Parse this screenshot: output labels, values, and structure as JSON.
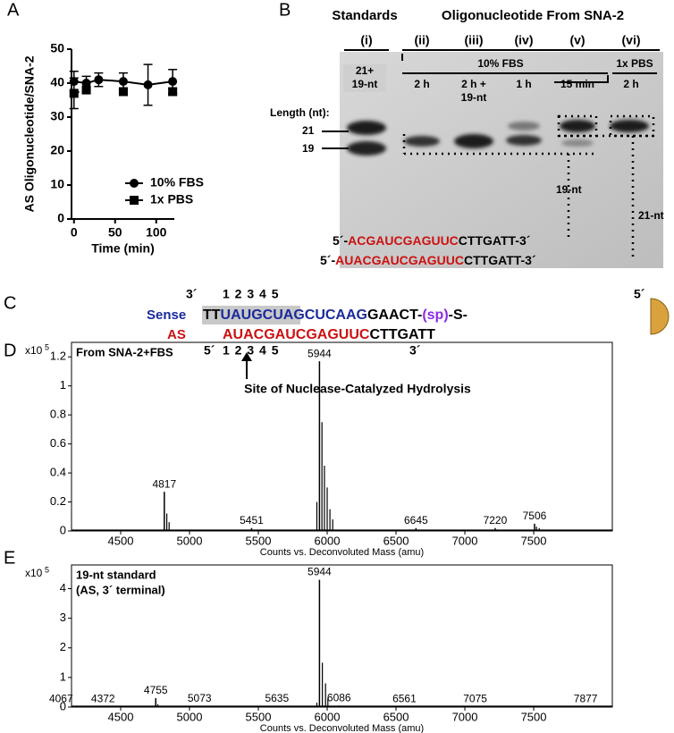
{
  "panel_letters": [
    "A",
    "B",
    "C",
    "D",
    "E"
  ],
  "chart_data": [
    {
      "type": "line",
      "y_label": "AS Oligonucleotide/SNA-2",
      "x_label": "Time (min)",
      "x": [
        0,
        15,
        30,
        60,
        90,
        120
      ],
      "series": [
        {
          "name": "10% FBS",
          "color": "#000000",
          "marker": "circle",
          "dash": false,
          "values": [
            40.5,
            40,
            41,
            40.5,
            39.5,
            40.5
          ],
          "errors": [
            3,
            2,
            2,
            2.5,
            6,
            3.5
          ]
        },
        {
          "name": "1x PBS",
          "color": "#000000",
          "marker": "square",
          "dash": true,
          "values": [
            37,
            38,
            null,
            37.5,
            null,
            37.5
          ],
          "errors": [
            4.5,
            1,
            null,
            1,
            null,
            1
          ]
        }
      ],
      "xlim": [
        -3,
        122
      ],
      "xticks": [
        0,
        50,
        100
      ],
      "ylim": [
        0,
        50
      ],
      "yticks": [
        0,
        10,
        20,
        30,
        40,
        50
      ]
    },
    {
      "type": "spectrum",
      "title": [
        "From SNA-2+FBS"
      ],
      "scale_label": "x10",
      "scale_exponent": "5",
      "x_label": "Counts vs. Deconvoluted Mass (amu)",
      "x": [
        4817,
        5451,
        5944,
        6645,
        7220,
        7506
      ],
      "values": [
        0.27,
        0.02,
        1.17,
        0.02,
        0.02,
        0.05
      ],
      "minor_x": [
        4835,
        4852,
        5925,
        5962,
        5980,
        6000,
        6020,
        6040,
        6600,
        7520,
        7540
      ],
      "minor_values": [
        0.12,
        0.06,
        0.2,
        0.75,
        0.45,
        0.3,
        0.15,
        0.08,
        0.01,
        0.03,
        0.02
      ],
      "color": "#000000",
      "xlim": [
        4143,
        8071
      ],
      "xticks": [
        4500,
        5000,
        5500,
        6000,
        6500,
        7000,
        7500
      ],
      "ylim": [
        0,
        1.3
      ],
      "yticks": [
        0,
        0.2,
        0.4,
        0.6,
        0.8,
        1,
        1.2
      ]
    },
    {
      "type": "spectrum",
      "title": [
        "19-nt standard",
        "(AS, 3´ terminal)"
      ],
      "scale_label": "x10",
      "scale_exponent": "5",
      "x_label": "Counts vs. Deconvoluted Mass (amu)",
      "x": [
        4067,
        4372,
        4755,
        5073,
        5635,
        5944,
        6086,
        6561,
        7075,
        7877
      ],
      "values": [
        0.02,
        0.02,
        0.3,
        0.03,
        0.03,
        4.3,
        0.05,
        0.02,
        0.02,
        0.02
      ],
      "minor_x": [
        5925,
        5965,
        5988,
        6005,
        4770
      ],
      "minor_values": [
        0.15,
        1.5,
        0.8,
        0.3,
        0.1
      ],
      "color": "#000000",
      "xlim": [
        4143,
        8071
      ],
      "xticks": [
        4500,
        5000,
        5500,
        6000,
        6500,
        7000,
        7500
      ],
      "ylim": [
        0,
        4.8
      ],
      "yticks": [
        0,
        1,
        2,
        3,
        4
      ]
    }
  ],
  "gel": {
    "header_left": "Standards",
    "header_right": "Oligonucleotide From SNA-2",
    "lanes": [
      "(i)",
      "(ii)",
      "(iii)",
      "(iv)",
      "(v)",
      "(vi)"
    ],
    "group_fbs": "10% FBS",
    "group_pbs": "1x PBS",
    "conditions": [
      [
        "21+",
        "19-nt"
      ],
      [
        "2 h"
      ],
      [
        "2 h +",
        "19-nt"
      ],
      [
        "1 h"
      ],
      [
        "15 min"
      ],
      [
        "2 h"
      ]
    ],
    "length_label": "Length (nt):",
    "marker_21": "21",
    "marker_19": "19",
    "band_19": "19-nt",
    "band_21": "21-nt",
    "sequences": [
      [
        {
          "text": "5´-",
          "color": "#000000"
        },
        {
          "text": "ACGAUCGAGUUC",
          "color": "#cc1111"
        },
        {
          "text": "CTTGATT-3´",
          "color": "#000000"
        }
      ],
      [
        {
          "text": "5´-",
          "color": "#000000"
        },
        {
          "text": "AUACGAUCGAGUUC",
          "color": "#cc1111"
        },
        {
          "text": "CTTGATT-3´",
          "color": "#000000"
        }
      ]
    ]
  },
  "diagram": {
    "sense_end": "3´",
    "sense_numbers": "1 2 3 4 5",
    "sense_label": "Sense",
    "sense_parts": [
      {
        "text": "TT",
        "color": "#000000"
      },
      {
        "text": "UAUGCUAGCUCAAG",
        "color": "#1a2a9a"
      },
      {
        "text": "GAACT-",
        "color": "#000000"
      },
      {
        "text": "(sp)",
        "color": "#8a2be2"
      },
      {
        "text": "-S-",
        "color": "#000000"
      }
    ],
    "sense_start": "5´",
    "as_label": "AS",
    "as_parts": [
      {
        "text": "AUACGAUCGAGUUC",
        "color": "#cc1111"
      },
      {
        "text": "CTTGATT",
        "color": "#000000"
      }
    ],
    "as_start": "5´",
    "as_numbers": "1 2 3 4 5",
    "as_end": "3´",
    "caption": "Site of Nuclease-Catalyzed Hydrolysis"
  }
}
